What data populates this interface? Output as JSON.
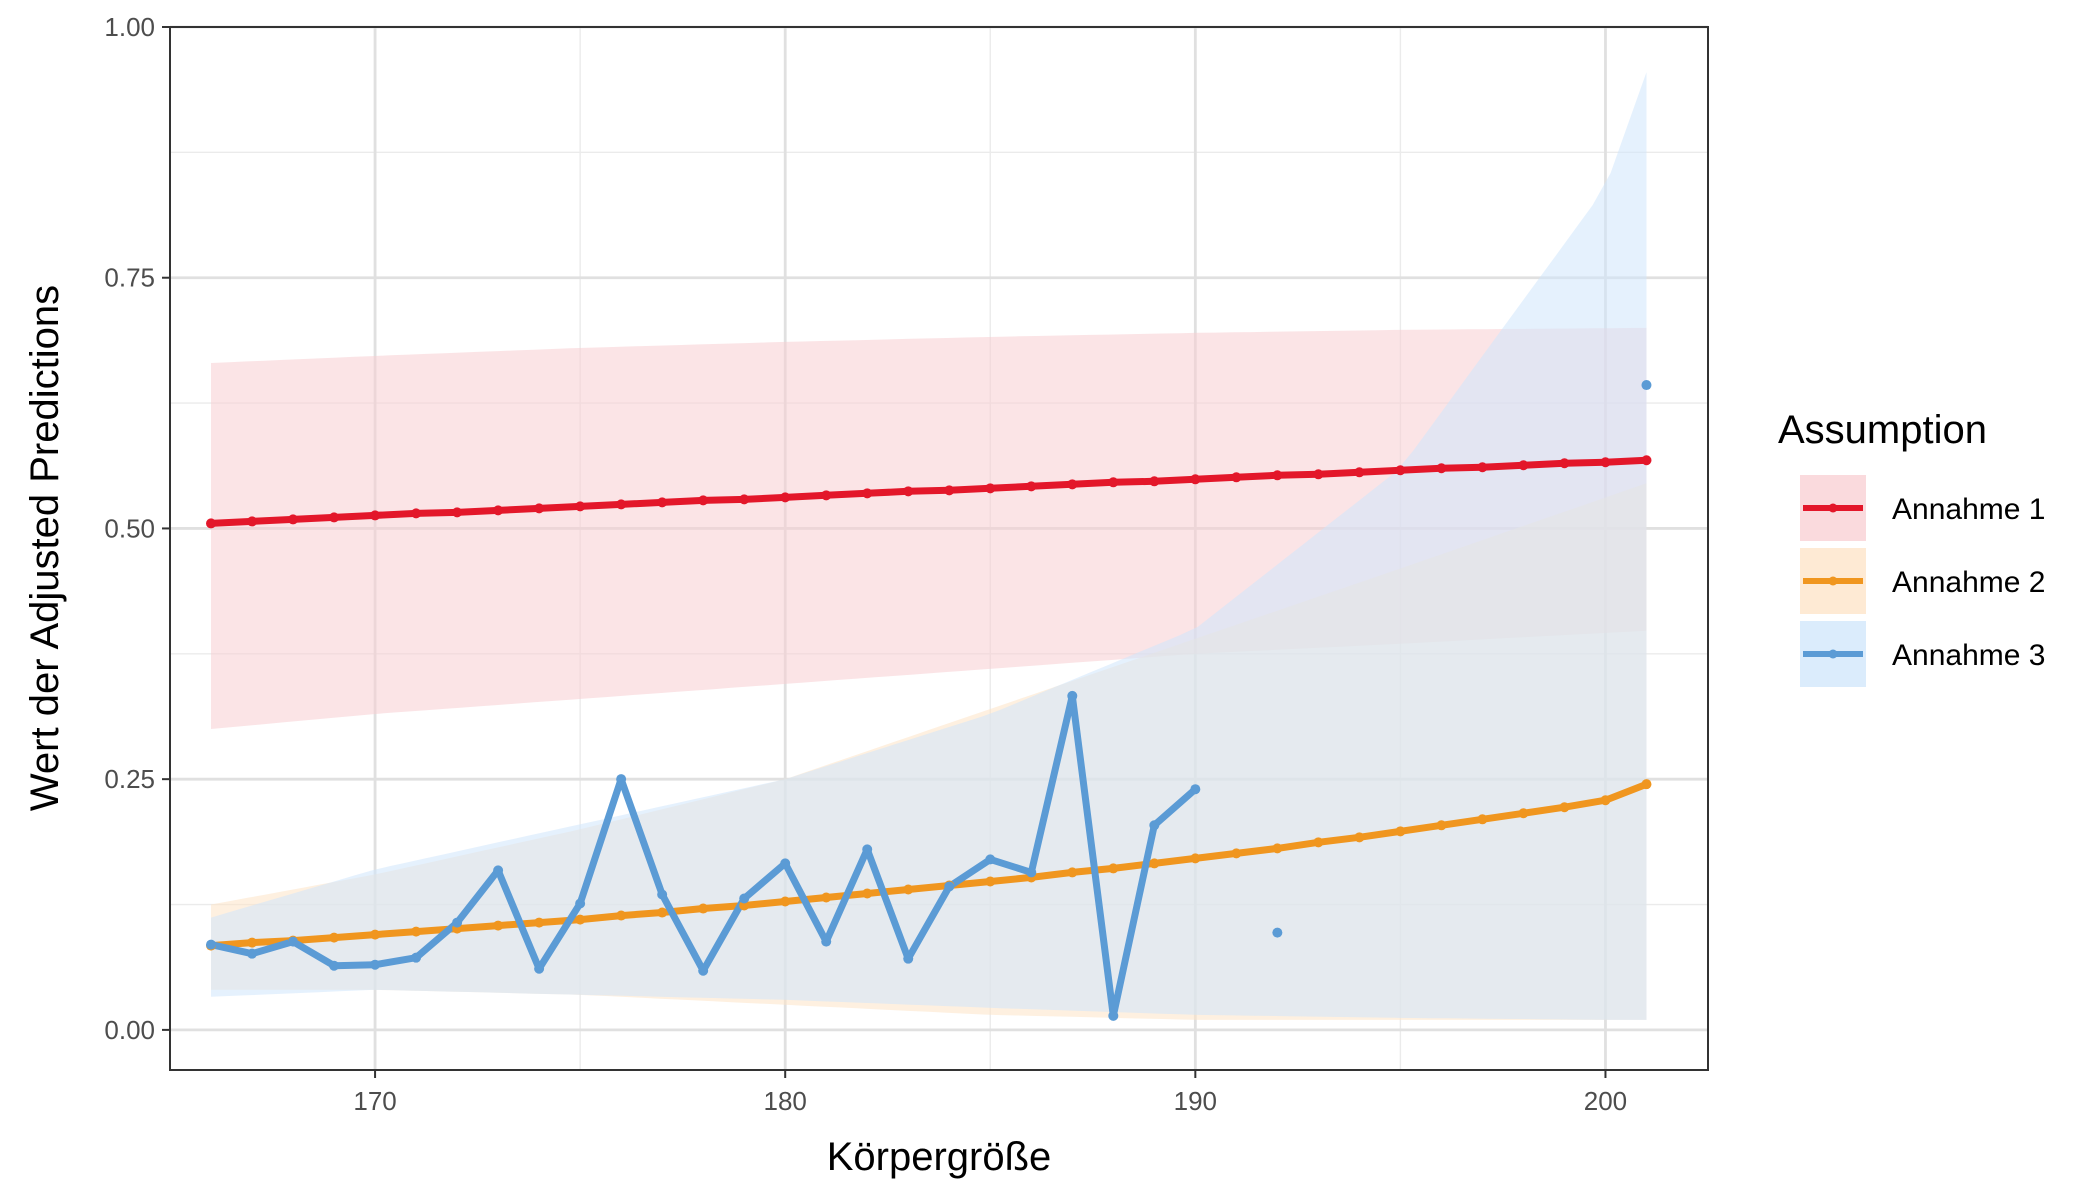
{
  "chart_data": {
    "type": "line",
    "title": "",
    "xlabel": "Körpergröße",
    "ylabel": "Wert der Adjusted Predictions",
    "xlim": [
      165.0,
      202.5
    ],
    "ylim": [
      -0.04,
      1.0
    ],
    "xticks": [
      170,
      180,
      190,
      200
    ],
    "xtick_labels": [
      "170",
      "180",
      "190",
      "200"
    ],
    "yticks": [
      0,
      0.25,
      0.5,
      0.75,
      1.0
    ],
    "ytick_labels": [
      "0.00",
      "0.25",
      "0.50",
      "0.75",
      "1.00"
    ],
    "grid": true,
    "legend": {
      "title": "Assumption",
      "position": "right"
    },
    "series": [
      {
        "name": "Annahme 1",
        "color": "#e3172a",
        "ribbon_color": "#f8cdd1",
        "x": [
          166,
          167,
          168,
          169,
          170,
          171,
          172,
          173,
          174,
          175,
          176,
          177,
          178,
          179,
          180,
          181,
          182,
          183,
          184,
          185,
          186,
          187,
          188,
          189,
          190,
          191,
          192,
          193,
          194,
          195,
          196,
          197,
          198,
          199,
          200,
          201
        ],
        "y": [
          0.505,
          0.507,
          0.509,
          0.511,
          0.513,
          0.515,
          0.516,
          0.518,
          0.52,
          0.522,
          0.524,
          0.526,
          0.528,
          0.529,
          0.531,
          0.533,
          0.535,
          0.537,
          0.538,
          0.54,
          0.542,
          0.544,
          0.546,
          0.547,
          0.549,
          0.551,
          0.553,
          0.554,
          0.556,
          0.558,
          0.56,
          0.561,
          0.563,
          0.565,
          0.566,
          0.568
        ],
        "ribbon": {
          "x": [
            166,
            170,
            175,
            180,
            185,
            190,
            195,
            201
          ],
          "lower": [
            0.3,
            0.315,
            0.33,
            0.345,
            0.36,
            0.375,
            0.385,
            0.398
          ],
          "upper": [
            0.665,
            0.672,
            0.68,
            0.686,
            0.691,
            0.695,
            0.698,
            0.7
          ]
        }
      },
      {
        "name": "Annahme 2",
        "color": "#f0961f",
        "ribbon_color": "#fde3c6",
        "x": [
          166,
          167,
          168,
          169,
          170,
          171,
          172,
          173,
          174,
          175,
          176,
          177,
          178,
          179,
          180,
          181,
          182,
          183,
          184,
          185,
          186,
          187,
          188,
          189,
          190,
          191,
          192,
          193,
          194,
          195,
          196,
          197,
          198,
          199,
          200,
          201
        ],
        "y": [
          0.084,
          0.087,
          0.089,
          0.092,
          0.095,
          0.098,
          0.101,
          0.104,
          0.107,
          0.11,
          0.114,
          0.117,
          0.121,
          0.124,
          0.128,
          0.132,
          0.136,
          0.14,
          0.144,
          0.148,
          0.152,
          0.157,
          0.161,
          0.166,
          0.171,
          0.176,
          0.181,
          0.187,
          0.192,
          0.198,
          0.204,
          0.21,
          0.216,
          0.222,
          0.229,
          0.245
        ],
        "ribbon": {
          "x": [
            166,
            170,
            175,
            180,
            185,
            190,
            195,
            201
          ],
          "lower": [
            0.04,
            0.04,
            0.035,
            0.025,
            0.015,
            0.01,
            0.01,
            0.01
          ],
          "upper": [
            0.125,
            0.155,
            0.2,
            0.25,
            0.32,
            0.39,
            0.46,
            0.545
          ]
        }
      },
      {
        "name": "Annahme 3",
        "color": "#5b9bd5",
        "ribbon_color": "#cfe6fb",
        "x": [
          166,
          167,
          168,
          169,
          170,
          171,
          172,
          173,
          174,
          175,
          176,
          177,
          178,
          179,
          180,
          181,
          182,
          183,
          184,
          185,
          186,
          187,
          188,
          189,
          190
        ],
        "y": [
          0.085,
          0.076,
          0.088,
          0.064,
          0.065,
          0.072,
          0.107,
          0.159,
          0.061,
          0.126,
          0.25,
          0.135,
          0.059,
          0.131,
          0.166,
          0.088,
          0.18,
          0.071,
          0.143,
          0.17,
          0.157,
          0.333,
          0.014,
          0.204,
          0.24
        ],
        "isolated_points": [
          {
            "x": 192,
            "y": 0.097
          },
          {
            "x": 201,
            "y": 0.643
          }
        ],
        "ribbon": {
          "x": [
            166,
            170,
            175,
            180,
            185,
            190,
            195,
            200,
            201
          ],
          "lower": [
            0.033,
            0.04,
            0.035,
            0.03,
            0.022,
            0.015,
            0.012,
            0.01,
            0.01
          ],
          "upper": [
            0.112,
            0.16,
            0.205,
            0.25,
            0.315,
            0.4,
            0.56,
            0.84,
            0.955
          ]
        }
      }
    ]
  }
}
